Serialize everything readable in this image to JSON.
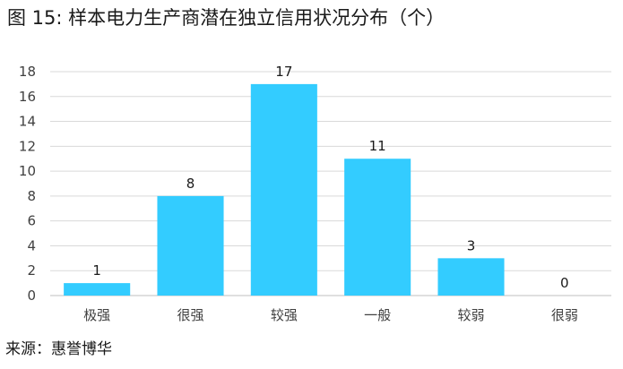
{
  "title": "图 15: 样本电力生产商潜在独立信用状况分布（个）",
  "source": "来源：惠誉博华",
  "colors": {
    "bar": "#33CCFF",
    "grid": "#D9D9D9",
    "text": "#404040"
  },
  "chart_data": {
    "type": "bar",
    "categories": [
      "极强",
      "很强",
      "较强",
      "一般",
      "较弱",
      "很弱"
    ],
    "values": [
      1,
      8,
      17,
      11,
      3,
      0
    ],
    "data_labels": [
      "1",
      "8",
      "17",
      "11",
      "3",
      "0"
    ],
    "ylim": [
      0,
      18
    ],
    "yticks": [
      0,
      2,
      4,
      6,
      8,
      10,
      12,
      14,
      16,
      18
    ],
    "ytick_labels": [
      "0",
      "2",
      "4",
      "6",
      "8",
      "10",
      "12",
      "14",
      "16",
      "18"
    ],
    "grid": true,
    "legend": "none",
    "xlabel": "",
    "ylabel": ""
  }
}
